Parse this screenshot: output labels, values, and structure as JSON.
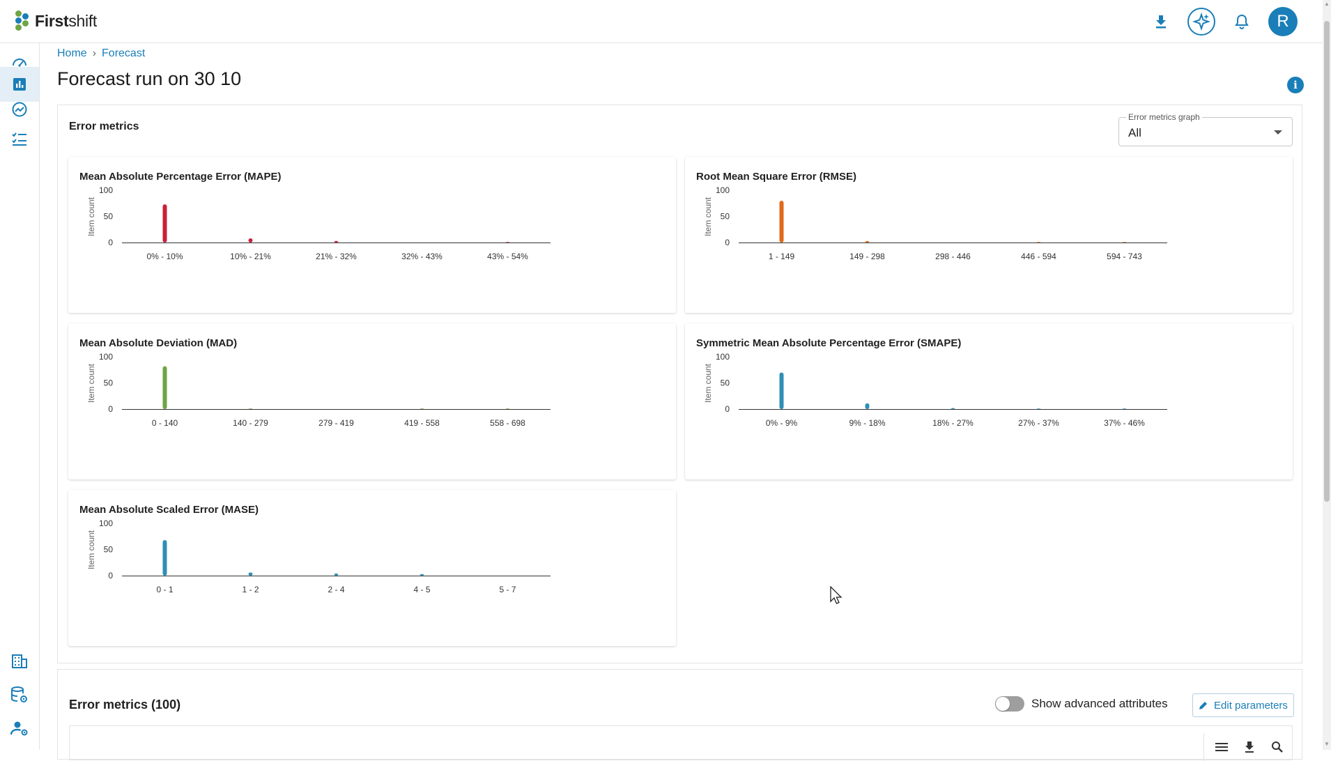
{
  "app": {
    "brand_bold": "First",
    "brand_light": "shift",
    "user_initial": "R"
  },
  "breadcrumb": {
    "home": "Home",
    "separator": "›",
    "current": "Forecast"
  },
  "page": {
    "title": "Forecast run on 30 10"
  },
  "error_metrics": {
    "title": "Error metrics",
    "select_label": "Error metrics graph",
    "select_value": "All"
  },
  "chart_data": [
    {
      "type": "bar",
      "title": "Mean Absolute Percentage Error (MAPE)",
      "ylabel": "Item count",
      "ylim": [
        0,
        100
      ],
      "yticks": [
        "100",
        "50",
        "0"
      ],
      "color": "#c8203a",
      "categories": [
        "0% - 10%",
        "10% - 21%",
        "21% - 32%",
        "32% - 43%",
        "43% - 54%"
      ],
      "values": [
        73,
        8,
        3,
        0,
        1
      ]
    },
    {
      "type": "bar",
      "title": "Root Mean Square Error (RMSE)",
      "ylabel": "Item count",
      "ylim": [
        0,
        100
      ],
      "yticks": [
        "100",
        "50",
        "0"
      ],
      "color": "#e06a1b",
      "categories": [
        "1 - 149",
        "149 - 298",
        "298 - 446",
        "446 - 594",
        "594 - 743"
      ],
      "values": [
        80,
        3,
        0,
        1,
        1
      ]
    },
    {
      "type": "bar",
      "title": "Mean Absolute Deviation (MAD)",
      "ylabel": "Item count",
      "ylim": [
        0,
        100
      ],
      "yticks": [
        "100",
        "50",
        "0"
      ],
      "color": "#6ea544",
      "categories": [
        "0 - 140",
        "140 - 279",
        "279 - 419",
        "419 - 558",
        "558 - 698"
      ],
      "values": [
        82,
        1,
        0,
        1,
        1
      ]
    },
    {
      "type": "bar",
      "title": "Symmetric Mean Absolute Percentage Error (SMAPE)",
      "ylabel": "Item count",
      "ylim": [
        0,
        100
      ],
      "yticks": [
        "100",
        "50",
        "0"
      ],
      "color": "#2f8fb5",
      "categories": [
        "0% - 9%",
        "9% - 18%",
        "18% - 27%",
        "27% - 37%",
        "37% - 46%"
      ],
      "values": [
        70,
        11,
        2,
        1,
        1
      ]
    },
    {
      "type": "bar",
      "title": "Mean Absolute Scaled Error (MASE)",
      "ylabel": "Item count",
      "ylim": [
        0,
        100
      ],
      "yticks": [
        "100",
        "50",
        "0"
      ],
      "color": "#2f8fb5",
      "categories": [
        "0 - 1",
        "1 - 2",
        "2 - 4",
        "4 - 5",
        "5 - 7"
      ],
      "values": [
        68,
        6,
        4,
        3,
        0
      ]
    }
  ],
  "table_section": {
    "title": "Error metrics (100)",
    "toggle_label": "Show advanced attributes",
    "edit_button": "Edit parameters"
  }
}
